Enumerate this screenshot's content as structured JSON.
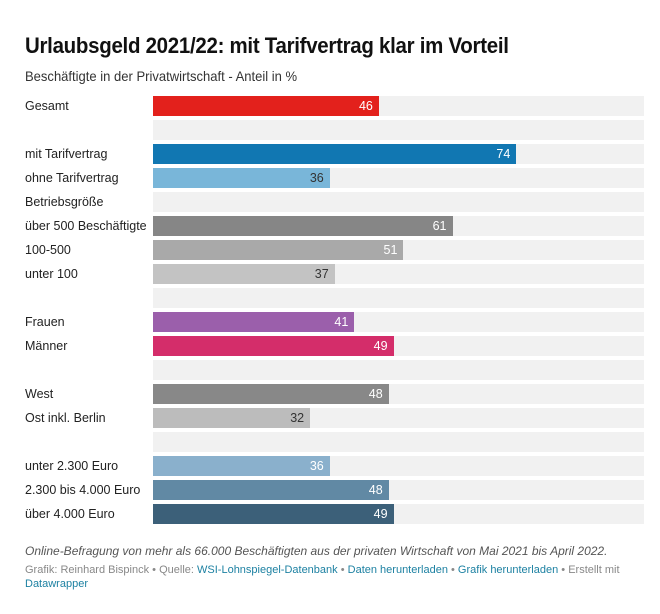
{
  "chart_data": {
    "type": "bar",
    "orientation": "horizontal",
    "title": "Urlaubsgeld 2021/22: mit Tarifvertrag klar im Vorteil",
    "subtitle": "Beschäftigte in der Privatwirtschaft - Anteil in %",
    "xlim": [
      0,
      100
    ],
    "grid": false,
    "rows": [
      {
        "label": "Gesamt",
        "value": 46,
        "color": "#e3211c",
        "label_color": "#ffffff"
      },
      {
        "label": "",
        "value": null
      },
      {
        "label": "mit Tarifvertrag",
        "value": 74,
        "color": "#1177b2",
        "label_color": "#ffffff"
      },
      {
        "label": "ohne Tarifvertrag",
        "value": 36,
        "color": "#79b6d9",
        "label_color": "#333333"
      },
      {
        "label": "Betriebsgröße",
        "value": null
      },
      {
        "label": "über 500 Beschäftigte",
        "value": 61,
        "color": "#868686",
        "label_color": "#ffffff"
      },
      {
        "label": "100-500",
        "value": 51,
        "color": "#a9a9a9",
        "label_color": "#ffffff"
      },
      {
        "label": "unter 100",
        "value": 37,
        "color": "#c3c3c3",
        "label_color": "#333333"
      },
      {
        "label": "",
        "value": null
      },
      {
        "label": "Frauen",
        "value": 41,
        "color": "#9b5fab",
        "label_color": "#ffffff"
      },
      {
        "label": "Männer",
        "value": 49,
        "color": "#d42d6a",
        "label_color": "#ffffff"
      },
      {
        "label": "",
        "value": null
      },
      {
        "label": "West",
        "value": 48,
        "color": "#888888",
        "label_color": "#ffffff"
      },
      {
        "label": "Ost inkl. Berlin",
        "value": 32,
        "color": "#bcbcbc",
        "label_color": "#333333"
      },
      {
        "label": "",
        "value": null
      },
      {
        "label": "unter 2.300 Euro",
        "value": 36,
        "color": "#8ab0cc",
        "label_color": "#ffffff"
      },
      {
        "label": "2.300 bis 4.000 Euro",
        "value": 48,
        "color": "#6189a4",
        "label_color": "#ffffff"
      },
      {
        "label": "über 4.000 Euro",
        "value": 49,
        "color": "#3c6079",
        "label_color": "#ffffff"
      }
    ],
    "track_color": "#f1f1f1"
  },
  "notes": "Online-Befragung von mehr als 66.000 Beschäftigten aus der privaten Wirtschaft von Mai 2021 bis April 2022.",
  "footer": {
    "graphic_label": "Grafik: Reinhard Bispinck",
    "source_prefix": "Quelle:",
    "source_link": "WSI-Lohnspiegel-Datenbank",
    "download_data": "Daten herunterladen",
    "download_graphic": "Grafik herunterladen",
    "created_with": "Erstellt mit",
    "tool_link": "Datawrapper",
    "separator": "•"
  }
}
